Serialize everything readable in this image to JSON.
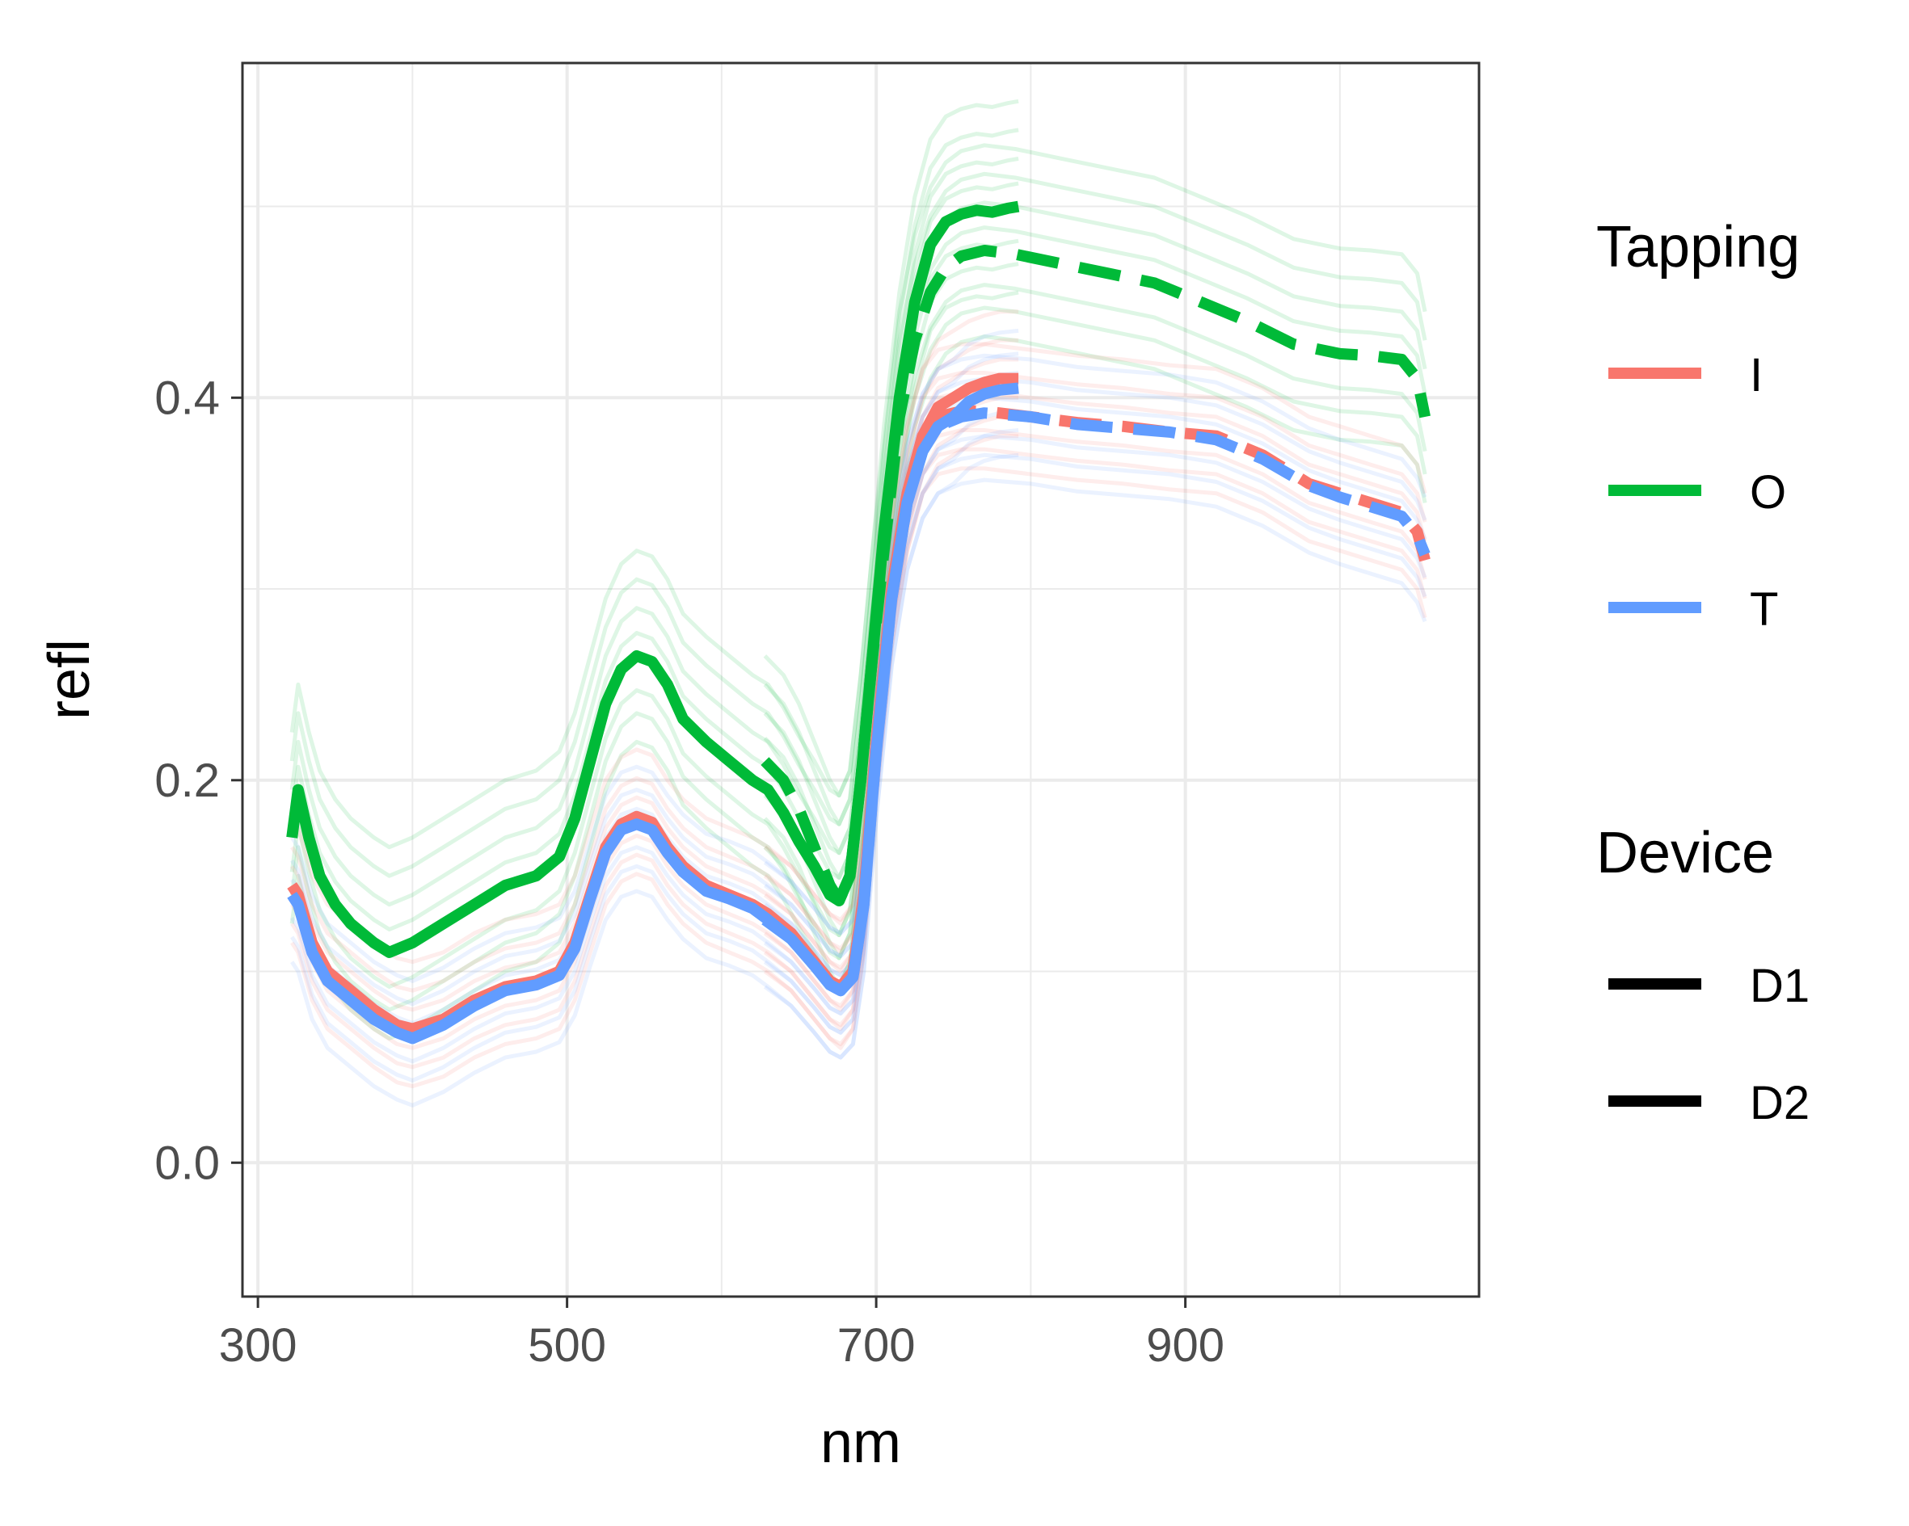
{
  "chart_data": {
    "type": "line",
    "xlabel": "nm",
    "ylabel": "refl",
    "xlim": [
      290,
      1090
    ],
    "ylim": [
      -0.07,
      0.575
    ],
    "x_ticks": [
      300,
      500,
      700,
      900
    ],
    "x_tick_labels": [
      "300",
      "500",
      "700",
      "900"
    ],
    "y_ticks": [
      0.0,
      0.2,
      0.4
    ],
    "y_tick_labels": [
      "0.0",
      "0.2",
      "0.4"
    ],
    "grid": true,
    "legend_position": "right",
    "legend": {
      "color": {
        "title": "Tapping",
        "entries": [
          {
            "label": "I",
            "color": "#F8766D"
          },
          {
            "label": "O",
            "color": "#00BA38"
          },
          {
            "label": "T",
            "color": "#619CFF"
          }
        ]
      },
      "linetype": {
        "title": "Device",
        "entries": [
          {
            "label": "D1",
            "dash": "solid"
          },
          {
            "label": "D2",
            "dash": "dashed"
          }
        ]
      }
    },
    "series": [
      {
        "name": "O",
        "device": "D1",
        "color": "#00BA38",
        "dash": "solid",
        "x": [
          322,
          326,
          333,
          340,
          350,
          360,
          375,
          385,
          400,
          420,
          440,
          460,
          480,
          495,
          505,
          515,
          525,
          535,
          545,
          555,
          565,
          575,
          590,
          605,
          620,
          630,
          640,
          650,
          660,
          670,
          676,
          683,
          690,
          697,
          705,
          715,
          725,
          735,
          745,
          755,
          765,
          775,
          785,
          792
        ],
        "y": [
          0.17,
          0.195,
          0.17,
          0.15,
          0.135,
          0.125,
          0.115,
          0.11,
          0.115,
          0.125,
          0.135,
          0.145,
          0.15,
          0.16,
          0.18,
          0.21,
          0.24,
          0.258,
          0.265,
          0.262,
          0.25,
          0.232,
          0.22,
          0.21,
          0.2,
          0.195,
          0.183,
          0.168,
          0.155,
          0.14,
          0.137,
          0.15,
          0.2,
          0.26,
          0.33,
          0.4,
          0.45,
          0.48,
          0.492,
          0.496,
          0.498,
          0.497,
          0.499,
          0.5
        ]
      },
      {
        "name": "O",
        "device": "D2",
        "color": "#00BA38",
        "dash": "dashed",
        "x": [
          628,
          640,
          650,
          660,
          670,
          676,
          683,
          690,
          697,
          705,
          715,
          725,
          735,
          745,
          755,
          770,
          790,
          820,
          850,
          880,
          910,
          940,
          970,
          1000,
          1020,
          1040,
          1050,
          1055
        ],
        "y": [
          0.21,
          0.2,
          0.185,
          0.165,
          0.145,
          0.137,
          0.15,
          0.2,
          0.26,
          0.32,
          0.39,
          0.43,
          0.455,
          0.468,
          0.474,
          0.477,
          0.475,
          0.47,
          0.465,
          0.46,
          0.45,
          0.44,
          0.428,
          0.423,
          0.422,
          0.42,
          0.41,
          0.39
        ]
      },
      {
        "name": "I",
        "device": "D1",
        "color": "#F8766D",
        "dash": "solid",
        "x": [
          322,
          326,
          335,
          345,
          360,
          375,
          390,
          400,
          420,
          440,
          460,
          480,
          495,
          505,
          515,
          525,
          535,
          545,
          555,
          565,
          575,
          590,
          605,
          620,
          630,
          645,
          660,
          670,
          677,
          685,
          692,
          700,
          710,
          720,
          730,
          740,
          750,
          760,
          770,
          780,
          792
        ],
        "y": [
          0.145,
          0.14,
          0.115,
          0.1,
          0.09,
          0.08,
          0.072,
          0.07,
          0.075,
          0.085,
          0.092,
          0.095,
          0.1,
          0.115,
          0.14,
          0.165,
          0.177,
          0.181,
          0.178,
          0.165,
          0.155,
          0.145,
          0.14,
          0.135,
          0.13,
          0.12,
          0.105,
          0.095,
          0.092,
          0.1,
          0.14,
          0.22,
          0.3,
          0.35,
          0.38,
          0.395,
          0.4,
          0.405,
          0.408,
          0.41,
          0.41
        ]
      },
      {
        "name": "I",
        "device": "D2",
        "color": "#F8766D",
        "dash": "dashed",
        "x": [
          628,
          645,
          660,
          670,
          677,
          685,
          692,
          700,
          710,
          720,
          730,
          740,
          755,
          770,
          800,
          830,
          860,
          890,
          920,
          950,
          980,
          1000,
          1020,
          1040,
          1050,
          1055
        ],
        "y": [
          0.13,
          0.12,
          0.105,
          0.095,
          0.09,
          0.1,
          0.14,
          0.22,
          0.3,
          0.35,
          0.38,
          0.39,
          0.393,
          0.393,
          0.39,
          0.387,
          0.385,
          0.382,
          0.38,
          0.37,
          0.355,
          0.35,
          0.345,
          0.34,
          0.33,
          0.315
        ]
      },
      {
        "name": "T",
        "device": "D1",
        "color": "#619CFF",
        "dash": "solid",
        "x": [
          322,
          326,
          335,
          345,
          360,
          375,
          390,
          400,
          420,
          440,
          460,
          480,
          495,
          505,
          515,
          525,
          535,
          545,
          555,
          565,
          575,
          590,
          605,
          620,
          630,
          645,
          660,
          670,
          677,
          685,
          692,
          700,
          710,
          720,
          730,
          740,
          750,
          760,
          770,
          780,
          792
        ],
        "y": [
          0.14,
          0.135,
          0.11,
          0.095,
          0.085,
          0.075,
          0.068,
          0.065,
          0.072,
          0.082,
          0.09,
          0.093,
          0.098,
          0.112,
          0.138,
          0.162,
          0.174,
          0.177,
          0.174,
          0.162,
          0.152,
          0.142,
          0.138,
          0.133,
          0.127,
          0.117,
          0.103,
          0.093,
          0.09,
          0.097,
          0.135,
          0.215,
          0.295,
          0.345,
          0.372,
          0.385,
          0.39,
          0.398,
          0.402,
          0.404,
          0.405
        ]
      },
      {
        "name": "T",
        "device": "D2",
        "color": "#619CFF",
        "dash": "dashed",
        "x": [
          628,
          645,
          660,
          670,
          677,
          685,
          692,
          700,
          710,
          720,
          730,
          740,
          755,
          770,
          800,
          830,
          860,
          890,
          920,
          950,
          980,
          1000,
          1020,
          1040,
          1050,
          1055
        ],
        "y": [
          0.127,
          0.117,
          0.103,
          0.093,
          0.09,
          0.097,
          0.135,
          0.215,
          0.295,
          0.345,
          0.372,
          0.385,
          0.39,
          0.392,
          0.39,
          0.386,
          0.384,
          0.382,
          0.378,
          0.368,
          0.354,
          0.348,
          0.343,
          0.338,
          0.328,
          0.318
        ]
      }
    ]
  }
}
